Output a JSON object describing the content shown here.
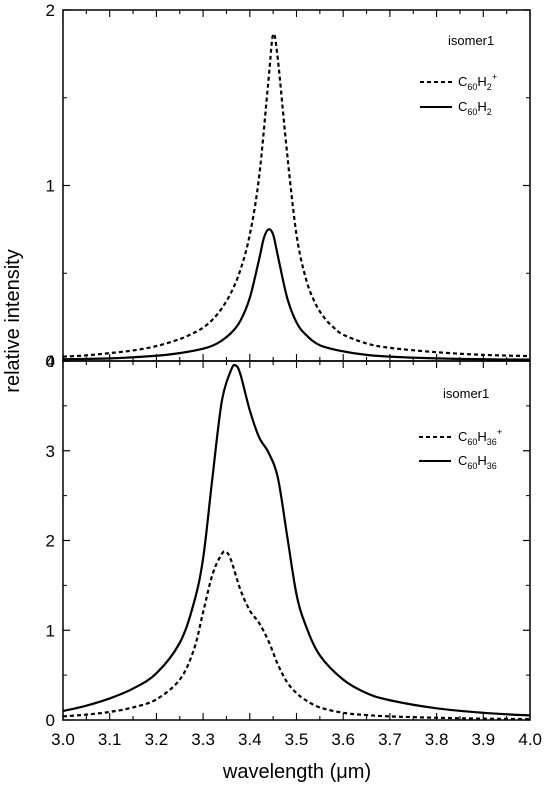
{
  "chart_data": [
    {
      "type": "line",
      "xlim": [
        3.0,
        4.0
      ],
      "ylim": [
        0,
        2
      ],
      "yticks": [
        0,
        1,
        2
      ],
      "annotation": "isomer1",
      "legend_position": "top-right",
      "series": [
        {
          "legend_base": "C",
          "legend_sub1": "60",
          "legend_mid": "H",
          "legend_sub2": "2",
          "legend_sup": "+",
          "style": "dashed",
          "x": [
            3.0,
            3.05,
            3.1,
            3.15,
            3.2,
            3.25,
            3.28,
            3.3,
            3.32,
            3.34,
            3.36,
            3.38,
            3.4,
            3.42,
            3.44,
            3.45,
            3.46,
            3.48,
            3.5,
            3.52,
            3.54,
            3.56,
            3.58,
            3.6,
            3.65,
            3.7,
            3.8,
            3.9,
            4.0
          ],
          "y": [
            0.025,
            0.032,
            0.045,
            0.06,
            0.085,
            0.125,
            0.16,
            0.19,
            0.235,
            0.3,
            0.39,
            0.52,
            0.72,
            1.05,
            1.6,
            1.86,
            1.72,
            1.18,
            0.72,
            0.47,
            0.33,
            0.245,
            0.19,
            0.15,
            0.1,
            0.075,
            0.05,
            0.035,
            0.028
          ]
        },
        {
          "legend_base": "C",
          "legend_sub1": "60",
          "legend_mid": "H",
          "legend_sub2": "2",
          "legend_sup": "",
          "style": "solid",
          "x": [
            3.0,
            3.1,
            3.2,
            3.25,
            3.3,
            3.33,
            3.36,
            3.38,
            3.4,
            3.42,
            3.43,
            3.44,
            3.45,
            3.46,
            3.48,
            3.5,
            3.52,
            3.55,
            3.6,
            3.65,
            3.7,
            3.8,
            3.9,
            4.0
          ],
          "y": [
            0.01,
            0.015,
            0.03,
            0.045,
            0.07,
            0.1,
            0.16,
            0.23,
            0.36,
            0.58,
            0.7,
            0.75,
            0.72,
            0.6,
            0.36,
            0.22,
            0.15,
            0.09,
            0.055,
            0.035,
            0.025,
            0.015,
            0.01,
            0.008
          ]
        }
      ]
    },
    {
      "type": "line",
      "xlabel": "wavelength (μm)",
      "xlim": [
        3.0,
        4.0
      ],
      "ylim": [
        0,
        4
      ],
      "xticks": [
        "3.0",
        "3.1",
        "3.2",
        "3.3",
        "3.4",
        "3.5",
        "3.6",
        "3.7",
        "3.8",
        "3.9",
        "4.0"
      ],
      "yticks": [
        0,
        1,
        2,
        3,
        4
      ],
      "annotation": "isomer1",
      "legend_position": "top-right",
      "series": [
        {
          "legend_base": "C",
          "legend_sub1": "60",
          "legend_mid": "H",
          "legend_sub2": "36",
          "legend_sup": "+",
          "style": "dashed",
          "x": [
            3.0,
            3.05,
            3.1,
            3.15,
            3.2,
            3.25,
            3.28,
            3.3,
            3.32,
            3.34,
            3.35,
            3.36,
            3.38,
            3.4,
            3.42,
            3.44,
            3.46,
            3.48,
            3.5,
            3.52,
            3.55,
            3.6,
            3.65,
            3.7,
            3.8,
            3.9,
            4.0
          ],
          "y": [
            0.04,
            0.06,
            0.09,
            0.14,
            0.23,
            0.45,
            0.78,
            1.2,
            1.62,
            1.85,
            1.87,
            1.78,
            1.45,
            1.22,
            1.08,
            0.88,
            0.62,
            0.42,
            0.3,
            0.22,
            0.14,
            0.08,
            0.055,
            0.04,
            0.025,
            0.015,
            0.01
          ]
        },
        {
          "legend_base": "C",
          "legend_sub1": "60",
          "legend_mid": "H",
          "legend_sub2": "36",
          "legend_sup": "",
          "style": "solid",
          "x": [
            3.0,
            3.05,
            3.1,
            3.15,
            3.2,
            3.25,
            3.28,
            3.3,
            3.32,
            3.34,
            3.36,
            3.37,
            3.38,
            3.4,
            3.42,
            3.44,
            3.46,
            3.48,
            3.5,
            3.52,
            3.55,
            3.6,
            3.65,
            3.7,
            3.8,
            3.9,
            4.0
          ],
          "y": [
            0.1,
            0.16,
            0.24,
            0.35,
            0.52,
            0.86,
            1.3,
            1.8,
            2.7,
            3.55,
            3.9,
            3.95,
            3.85,
            3.45,
            3.15,
            2.98,
            2.7,
            2.05,
            1.4,
            1.05,
            0.72,
            0.45,
            0.3,
            0.22,
            0.13,
            0.08,
            0.05
          ]
        }
      ]
    }
  ],
  "ylabel": "relative intensity"
}
